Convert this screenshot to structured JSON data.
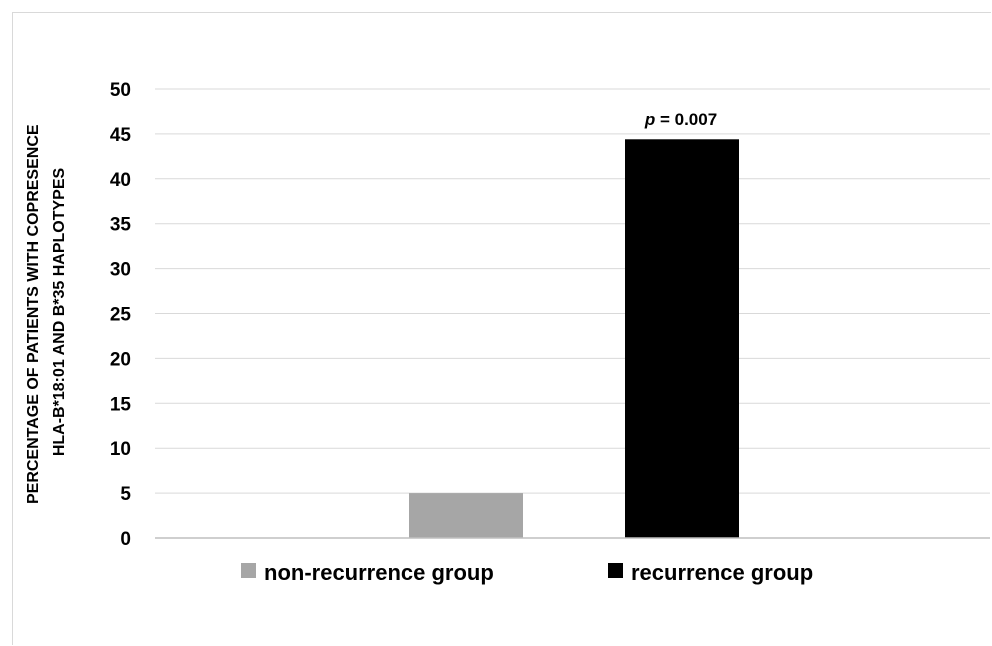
{
  "chart_data": {
    "type": "bar",
    "title": "",
    "xlabel": "",
    "ylabel_lines": [
      "PERCENTAGE OF PATIENTS WITH COPRESENCE",
      "HLA-B*18:01 AND B*35 HAPLOTYPES"
    ],
    "ylim": [
      0,
      50
    ],
    "yticks": [
      0,
      5,
      10,
      15,
      20,
      25,
      30,
      35,
      40,
      45,
      50
    ],
    "grid": true,
    "legend_placement": "bottom",
    "series": [
      {
        "name": "non-recurrence group",
        "value": 5,
        "color": "#a6a6a6"
      },
      {
        "name": "recurrence group",
        "value": 44.4,
        "color": "#000000"
      }
    ],
    "annotation": {
      "p_label": "p",
      "text": " = 0.007"
    }
  }
}
